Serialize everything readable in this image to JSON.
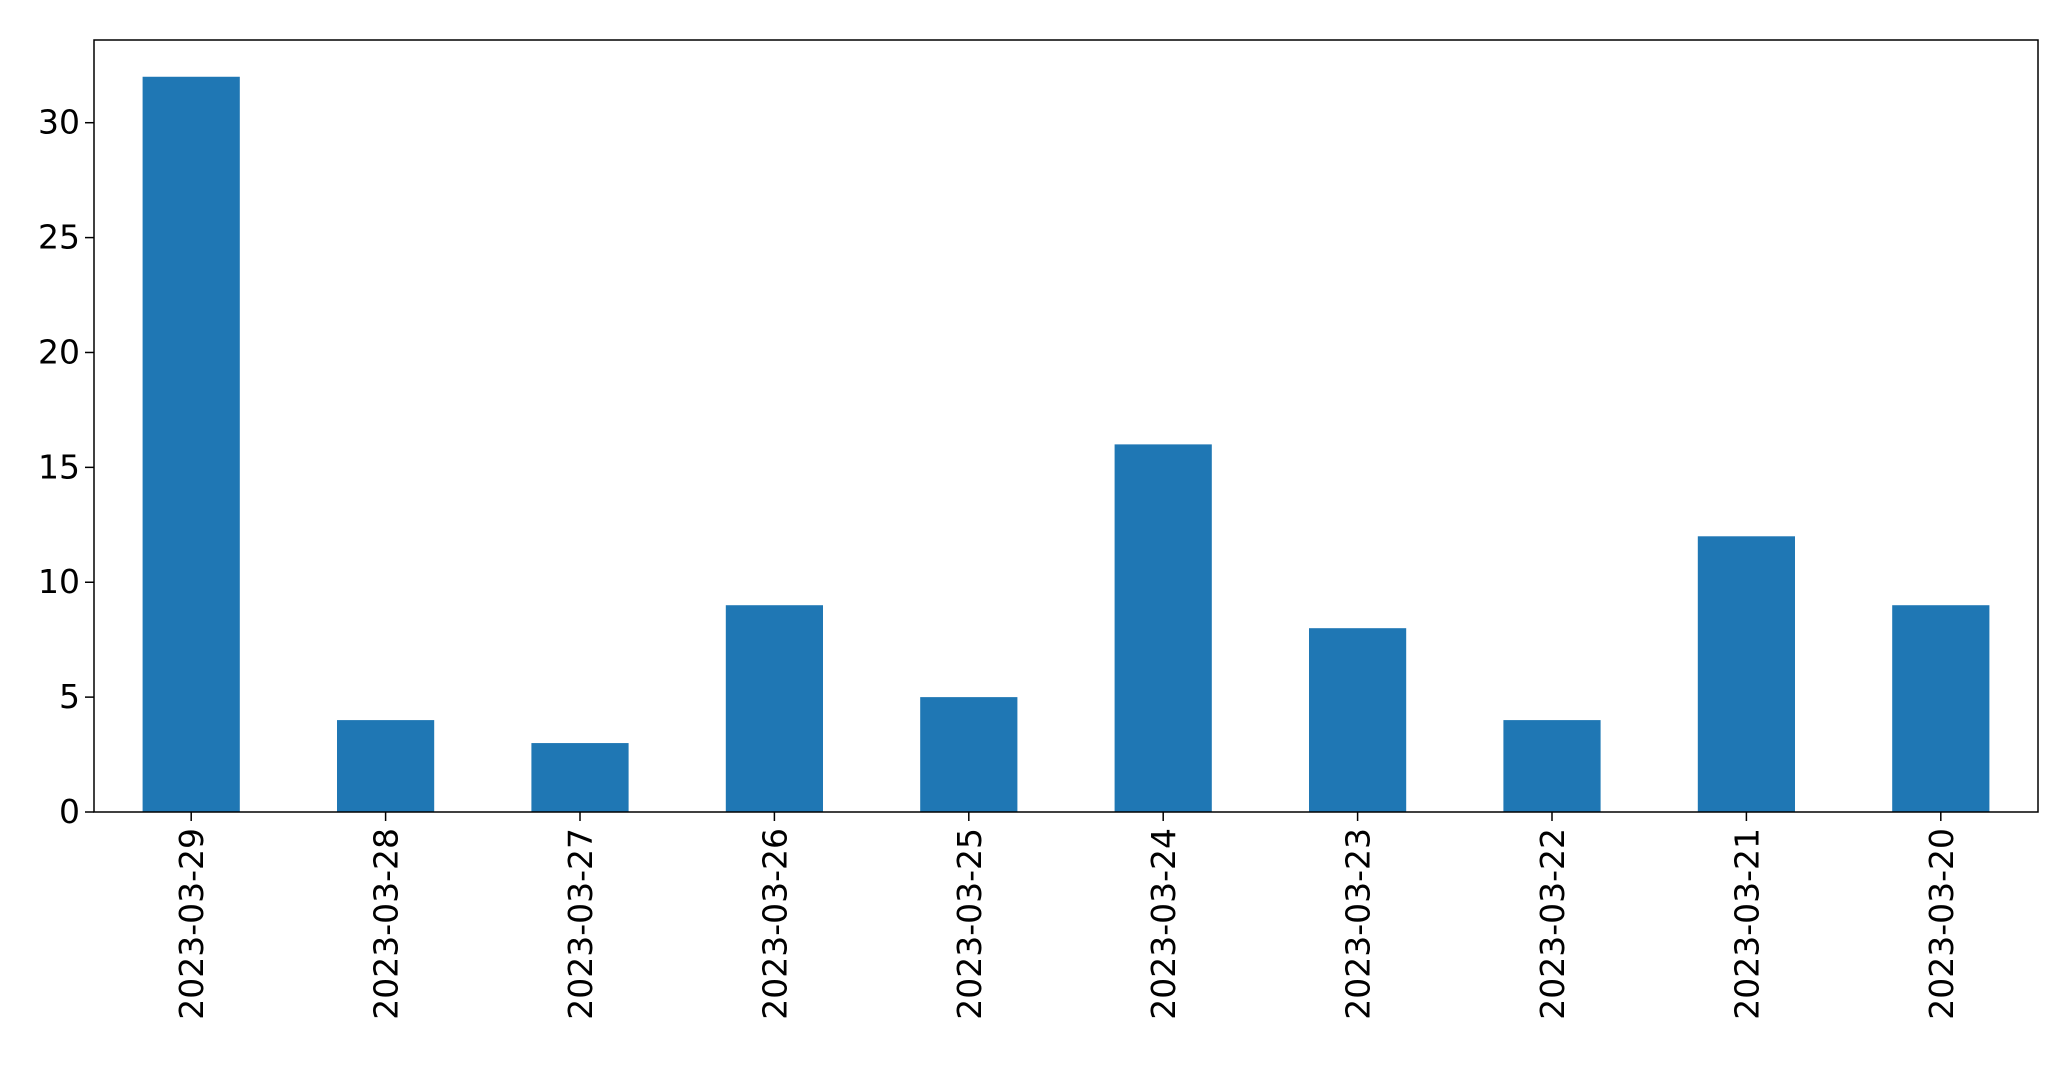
{
  "chart_data": {
    "type": "bar",
    "title": "",
    "xlabel": "",
    "ylabel": "",
    "categories": [
      "2023-03-29",
      "2023-03-28",
      "2023-03-27",
      "2023-03-26",
      "2023-03-25",
      "2023-03-24",
      "2023-03-23",
      "2023-03-22",
      "2023-03-21",
      "2023-03-20"
    ],
    "values": [
      32,
      4,
      3,
      9,
      5,
      16,
      8,
      4,
      12,
      9
    ],
    "ylim": [
      0,
      33.6
    ],
    "yticks": [
      0,
      5,
      10,
      15,
      20,
      25,
      30
    ],
    "grid": false,
    "legend": false,
    "colors": {
      "bar": "#1f77b4",
      "axis": "#000000"
    }
  }
}
